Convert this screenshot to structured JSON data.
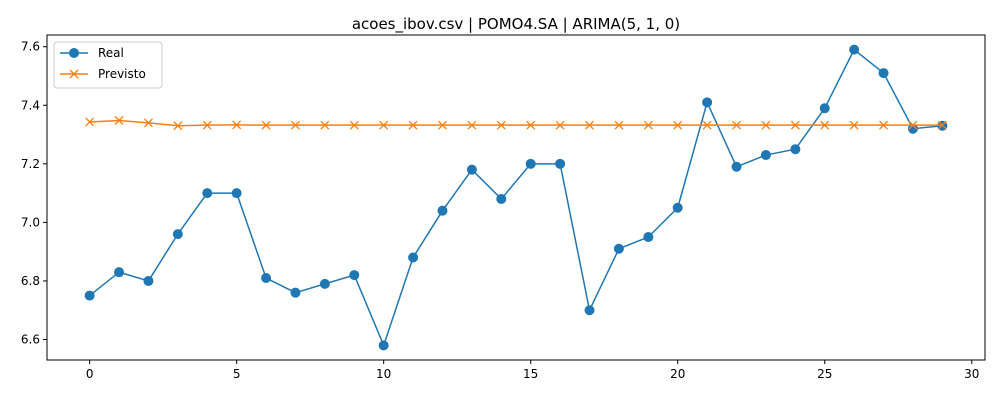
{
  "chart_data": {
    "type": "line",
    "title": "acoes_ibov.csv | POMO4.SA | ARIMA(5, 1, 0)",
    "xlabel": "",
    "ylabel": "",
    "xlim": [
      -1.45,
      30.45
    ],
    "ylim": [
      6.53,
      7.64
    ],
    "xticks": [
      0,
      5,
      10,
      15,
      20,
      25,
      30
    ],
    "yticks": [
      6.6,
      6.8,
      7.0,
      7.2,
      7.4,
      7.6
    ],
    "xtick_labels": [
      "0",
      "5",
      "10",
      "15",
      "20",
      "25",
      "30"
    ],
    "ytick_labels": [
      "6.6",
      "6.8",
      "7.0",
      "7.2",
      "7.4",
      "7.6"
    ],
    "grid": false,
    "legend": {
      "position": "top-left"
    },
    "x": [
      0,
      1,
      2,
      3,
      4,
      5,
      6,
      7,
      8,
      9,
      10,
      11,
      12,
      13,
      14,
      15,
      16,
      17,
      18,
      19,
      20,
      21,
      22,
      23,
      24,
      25,
      26,
      27,
      28,
      29
    ],
    "series": [
      {
        "name": "Real",
        "color": "#1f77b4",
        "marker": "circle",
        "values": [
          6.75,
          6.83,
          6.8,
          6.96,
          7.1,
          7.1,
          6.81,
          6.76,
          6.79,
          6.82,
          6.58,
          6.88,
          7.04,
          7.18,
          7.08,
          7.2,
          7.2,
          6.7,
          6.91,
          6.95,
          7.05,
          7.41,
          7.19,
          7.23,
          7.25,
          7.39,
          7.59,
          7.51,
          7.32,
          7.33
        ]
      },
      {
        "name": "Previsto",
        "color": "#ff7f0e",
        "marker": "x",
        "values": [
          7.343,
          7.348,
          7.34,
          7.33,
          7.332,
          7.333,
          7.332,
          7.332,
          7.332,
          7.332,
          7.332,
          7.332,
          7.332,
          7.332,
          7.332,
          7.332,
          7.332,
          7.332,
          7.332,
          7.332,
          7.332,
          7.332,
          7.332,
          7.332,
          7.332,
          7.332,
          7.332,
          7.332,
          7.332,
          7.332
        ]
      }
    ]
  }
}
